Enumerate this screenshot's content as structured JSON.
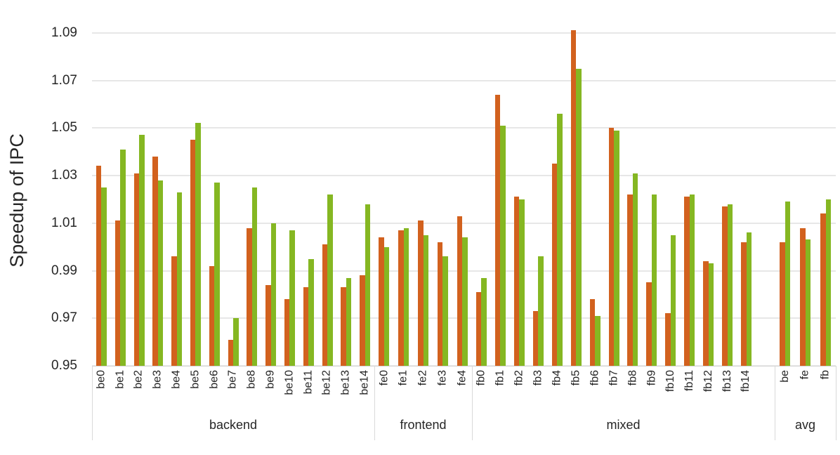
{
  "chart_data": {
    "type": "bar",
    "title": "",
    "ylabel": "Speedup of IPC",
    "xlabel": "",
    "ylim": [
      0.95,
      1.09
    ],
    "ytick_step": 0.02,
    "yticks": [
      "1.09",
      "1.07",
      "1.05",
      "1.03",
      "1.01",
      "0.99",
      "0.97",
      "0.95"
    ],
    "grid": true,
    "legend_position": "none",
    "series_colors": {
      "orange": "#d2611e",
      "green": "#85b722"
    },
    "groups": [
      {
        "label": "backend",
        "categories": [
          "be0",
          "be1",
          "be2",
          "be3",
          "be4",
          "be5",
          "be6",
          "be7",
          "be8",
          "be9",
          "be10",
          "be11",
          "be12",
          "be13",
          "be14"
        ],
        "series": [
          {
            "name": "orange",
            "values": [
              1.034,
              1.011,
              1.031,
              1.038,
              0.996,
              1.045,
              0.992,
              0.961,
              1.008,
              0.984,
              0.978,
              0.983,
              1.001,
              0.983,
              0.988
            ]
          },
          {
            "name": "green",
            "values": [
              1.025,
              1.041,
              1.047,
              1.028,
              1.023,
              1.052,
              1.027,
              0.97,
              1.025,
              1.01,
              1.007,
              0.995,
              1.022,
              0.987,
              1.018
            ]
          }
        ]
      },
      {
        "label": "frontend",
        "categories": [
          "fe0",
          "fe1",
          "fe2",
          "fe3",
          "fe4"
        ],
        "series": [
          {
            "name": "orange",
            "values": [
              1.004,
              1.007,
              1.011,
              1.002,
              1.013
            ]
          },
          {
            "name": "green",
            "values": [
              1.0,
              1.008,
              1.005,
              0.996,
              1.004
            ]
          }
        ]
      },
      {
        "label": "mixed",
        "categories": [
          "fb0",
          "fb1",
          "fb2",
          "fb3",
          "fb4",
          "fb5",
          "fb6",
          "fb7",
          "fb8",
          "fb9",
          "fb10",
          "fb11",
          "fb12",
          "fb13",
          "fb14"
        ],
        "series": [
          {
            "name": "orange",
            "values": [
              0.981,
              1.064,
              1.021,
              0.973,
              1.035,
              1.091,
              0.978,
              1.05,
              1.022,
              0.985,
              0.972,
              1.021,
              0.994,
              1.017,
              1.002
            ]
          },
          {
            "name": "green",
            "values": [
              0.987,
              1.051,
              1.02,
              0.996,
              1.056,
              1.075,
              0.971,
              1.049,
              1.031,
              1.022,
              1.005,
              1.022,
              0.993,
              1.018,
              1.006
            ]
          }
        ]
      },
      {
        "label": "avg",
        "categories": [
          "be",
          "fe",
          "fb"
        ],
        "series": [
          {
            "name": "orange",
            "values": [
              1.002,
              1.008,
              1.014
            ]
          },
          {
            "name": "green",
            "values": [
              1.019,
              1.003,
              1.02
            ]
          }
        ]
      }
    ]
  }
}
